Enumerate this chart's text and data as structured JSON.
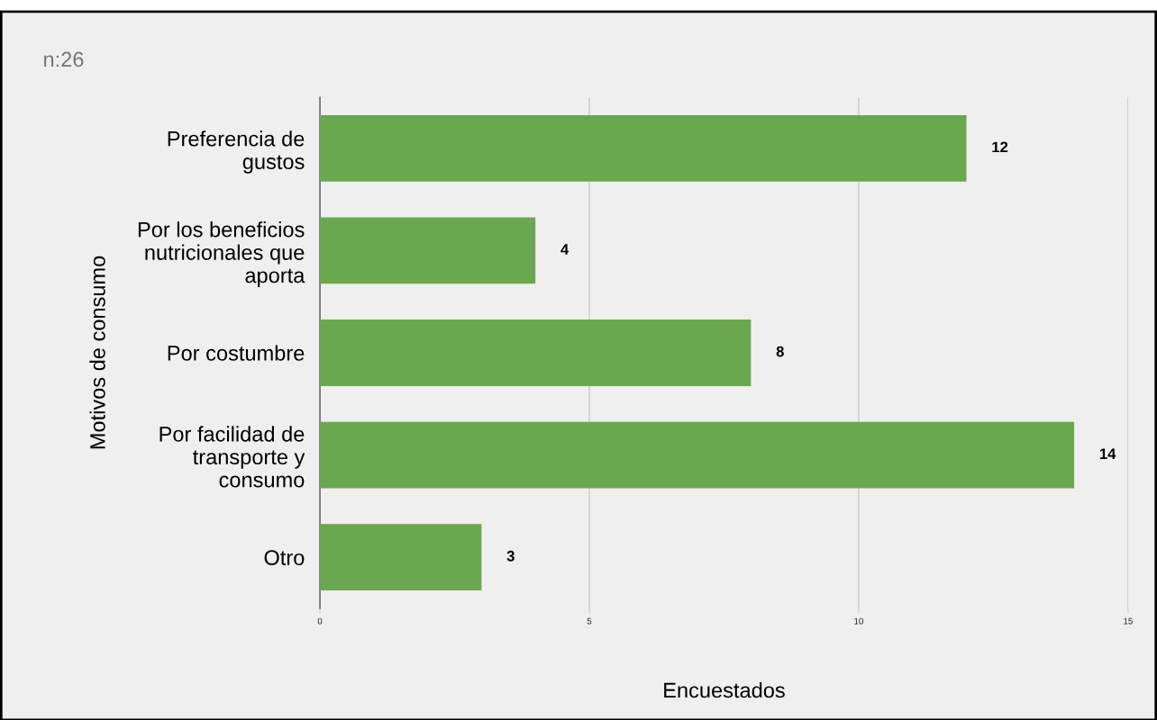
{
  "chart_data": {
    "type": "bar",
    "orientation": "horizontal",
    "title": "n:26",
    "xlabel": "Encuestados",
    "ylabel": "Motivos de consumo",
    "categories": [
      "Preferencia de\ngustos",
      "Por los beneficios\nnutricionales que\naporta",
      "Por costumbre",
      "Por facilidad de\ntransporte y\nconsumo",
      "Otro"
    ],
    "values": [
      12,
      4,
      8,
      14,
      3
    ],
    "color": "#6aa84f",
    "data_labels": true,
    "xlim": [
      0,
      15
    ],
    "xticks": [
      0,
      5,
      10,
      15
    ],
    "grid": "x",
    "legend": false
  }
}
